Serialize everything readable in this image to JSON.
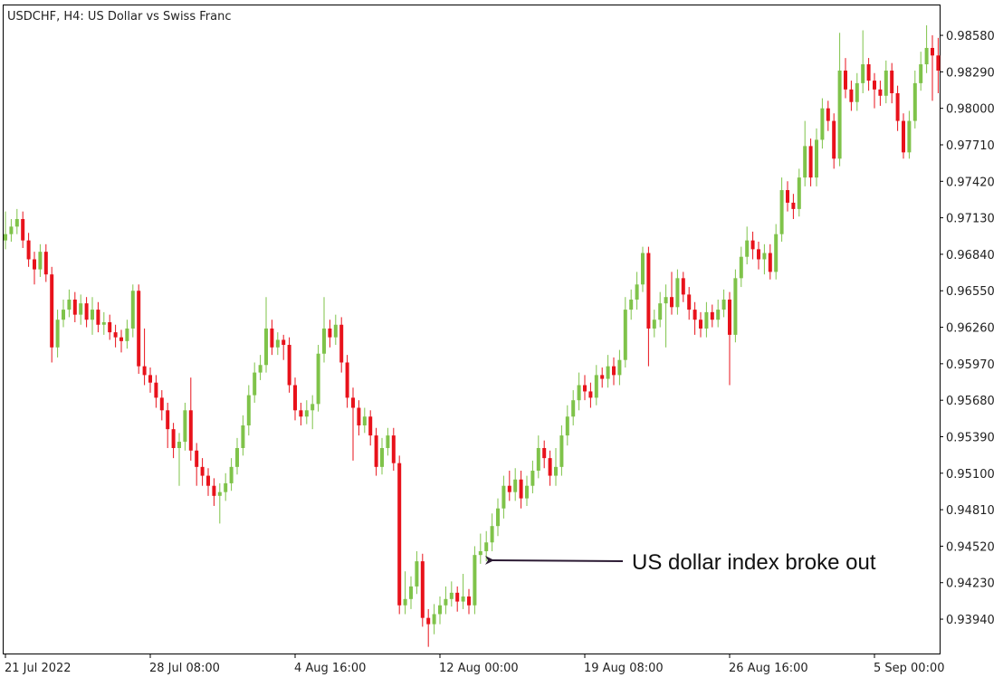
{
  "chart_data": {
    "type": "candlestick",
    "title": "USDCHF, H4:  US Dollar vs Swiss Franc",
    "up_color": "#7fc34a",
    "down_color": "#e8121b",
    "ylim": [
      0.93667,
      0.98825
    ],
    "yticks": [
      {
        "value": 0.9858,
        "label": "0.98580"
      },
      {
        "value": 0.9829,
        "label": "0.98290"
      },
      {
        "value": 0.98,
        "label": "0.98000"
      },
      {
        "value": 0.9771,
        "label": "0.97710"
      },
      {
        "value": 0.9742,
        "label": "0.97420"
      },
      {
        "value": 0.9713,
        "label": "0.97130"
      },
      {
        "value": 0.9684,
        "label": "0.96840"
      },
      {
        "value": 0.9655,
        "label": "0.96550"
      },
      {
        "value": 0.9626,
        "label": "0.96260"
      },
      {
        "value": 0.9597,
        "label": "0.95970"
      },
      {
        "value": 0.9568,
        "label": "0.95680"
      },
      {
        "value": 0.9539,
        "label": "0.95390"
      },
      {
        "value": 0.951,
        "label": "0.95100"
      },
      {
        "value": 0.9481,
        "label": "0.94810"
      },
      {
        "value": 0.9452,
        "label": "0.94520"
      },
      {
        "value": 0.9423,
        "label": "0.94230"
      },
      {
        "value": 0.9394,
        "label": "0.93940"
      }
    ],
    "categories": [
      "21 Jul 2022",
      null,
      null,
      null,
      null,
      null,
      null,
      null,
      null,
      null,
      null,
      null,
      null,
      null,
      null,
      null,
      null,
      null,
      null,
      null,
      null,
      null,
      null,
      null,
      null,
      "28 Jul 08:00",
      null,
      null,
      null,
      null,
      null,
      null,
      null,
      null,
      null,
      null,
      null,
      null,
      null,
      null,
      null,
      null,
      null,
      null,
      null,
      null,
      null,
      null,
      null,
      null,
      "4 Aug 16:00",
      null,
      null,
      null,
      null,
      null,
      null,
      null,
      null,
      null,
      null,
      null,
      null,
      null,
      null,
      null,
      null,
      null,
      null,
      null,
      null,
      null,
      null,
      null,
      null,
      "12 Aug 00:00",
      null,
      null,
      null,
      null,
      null,
      null,
      null,
      null,
      null,
      null,
      null,
      null,
      null,
      null,
      null,
      null,
      null,
      null,
      null,
      null,
      null,
      null,
      null,
      null,
      "19 Aug 08:00",
      null,
      null,
      null,
      null,
      null,
      null,
      null,
      null,
      null,
      null,
      null,
      null,
      null,
      null,
      null,
      null,
      null,
      null,
      null,
      null,
      null,
      null,
      null,
      null,
      "26 Aug 16:00",
      null,
      null,
      null,
      null,
      null,
      null,
      null,
      null,
      null,
      null,
      null,
      null,
      null,
      null,
      null,
      null,
      null,
      null,
      null,
      null,
      null,
      null,
      null,
      null,
      "5 Sep 00:00",
      null,
      null,
      null,
      null,
      null,
      null,
      null,
      null,
      null,
      null,
      null
    ],
    "open": [
      0.9695,
      0.97,
      0.9706,
      0.9712,
      0.9695,
      0.968,
      0.9672,
      0.9686,
      0.9668,
      0.961,
      0.9632,
      0.964,
      0.9648,
      0.9636,
      0.9645,
      0.9632,
      0.964,
      0.9628,
      0.963,
      0.9622,
      0.9618,
      0.9615,
      0.9625,
      0.9655,
      0.9595,
      0.9588,
      0.9582,
      0.957,
      0.956,
      0.9545,
      0.953,
      0.9535,
      0.956,
      0.9528,
      0.9515,
      0.9508,
      0.95,
      0.9492,
      0.9495,
      0.9502,
      0.9515,
      0.953,
      0.9548,
      0.9572,
      0.959,
      0.9596,
      0.9625,
      0.961,
      0.9616,
      0.9612,
      0.958,
      0.956,
      0.9555,
      0.956,
      0.9565,
      0.9605,
      0.9625,
      0.9618,
      0.9628,
      0.9598,
      0.957,
      0.9562,
      0.9548,
      0.9555,
      0.954,
      0.9515,
      0.953,
      0.954,
      0.9518,
      0.9405,
      0.941,
      0.942,
      0.944,
      0.9395,
      0.939,
      0.9398,
      0.9405,
      0.941,
      0.9415,
      0.9408,
      0.9412,
      0.9405,
      0.9445,
      0.9448,
      0.9455,
      0.9468,
      0.9482,
      0.95,
      0.9495,
      0.9505,
      0.949,
      0.95,
      0.9512,
      0.953,
      0.9522,
      0.9508,
      0.9515,
      0.954,
      0.9555,
      0.9568,
      0.958,
      0.9575,
      0.957,
      0.9588,
      0.9585,
      0.9595,
      0.9588,
      0.96,
      0.964,
      0.9648,
      0.966,
      0.9685,
      0.9625,
      0.9632,
      0.9645,
      0.965,
      0.9642,
      0.9665,
      0.9652,
      0.964,
      0.9632,
      0.9625,
      0.9638,
      0.9632,
      0.964,
      0.9648,
      0.962,
      0.9665,
      0.9682,
      0.9695,
      0.9688,
      0.968,
      0.9685,
      0.967,
      0.97,
      0.9735,
      0.9725,
      0.972,
      0.9745,
      0.977,
      0.9745,
      0.9775,
      0.98,
      0.979,
      0.976,
      0.983,
      0.9815,
      0.9805,
      0.982,
      0.9835,
      0.9822,
      0.9815,
      0.981,
      0.983,
      0.9812,
      0.979,
      0.9765,
      0.979,
      0.982,
      0.9835,
      0.9848,
      0.9842
    ],
    "high": [
      0.9718,
      0.9712,
      0.972,
      0.9718,
      0.9701,
      0.9686,
      0.9692,
      0.9692,
      0.9674,
      0.964,
      0.9648,
      0.9656,
      0.9654,
      0.9652,
      0.965,
      0.965,
      0.9646,
      0.9638,
      0.9636,
      0.9628,
      0.9624,
      0.9632,
      0.966,
      0.966,
      0.9625,
      0.9594,
      0.9588,
      0.9576,
      0.9566,
      0.955,
      0.9542,
      0.9566,
      0.9586,
      0.9534,
      0.9522,
      0.9514,
      0.9506,
      0.9502,
      0.951,
      0.9522,
      0.9538,
      0.9556,
      0.958,
      0.9598,
      0.9604,
      0.965,
      0.9632,
      0.9622,
      0.962,
      0.9618,
      0.9586,
      0.9566,
      0.9568,
      0.9572,
      0.9612,
      0.965,
      0.9632,
      0.9636,
      0.9634,
      0.9604,
      0.9578,
      0.9568,
      0.9562,
      0.956,
      0.9546,
      0.9538,
      0.9546,
      0.9546,
      0.9524,
      0.9432,
      0.9428,
      0.9448,
      0.9446,
      0.9402,
      0.9406,
      0.9412,
      0.942,
      0.9424,
      0.942,
      0.943,
      0.9418,
      0.9452,
      0.9462,
      0.9464,
      0.9478,
      0.949,
      0.9508,
      0.9512,
      0.9514,
      0.9512,
      0.9508,
      0.952,
      0.954,
      0.9536,
      0.9528,
      0.953,
      0.9548,
      0.9564,
      0.9576,
      0.959,
      0.9588,
      0.9582,
      0.9596,
      0.9594,
      0.9604,
      0.9602,
      0.9608,
      0.965,
      0.9656,
      0.967,
      0.969,
      0.969,
      0.964,
      0.9654,
      0.966,
      0.967,
      0.9672,
      0.967,
      0.9658,
      0.9646,
      0.9638,
      0.9646,
      0.9644,
      0.9648,
      0.9656,
      0.9654,
      0.9672,
      0.969,
      0.9706,
      0.9702,
      0.9694,
      0.9692,
      0.9692,
      0.9708,
      0.9745,
      0.9742,
      0.9732,
      0.9752,
      0.979,
      0.9776,
      0.9784,
      0.9808,
      0.9806,
      0.9796,
      0.986,
      0.984,
      0.9822,
      0.9828,
      0.9862,
      0.984,
      0.9828,
      0.9822,
      0.9838,
      0.9836,
      0.9818,
      0.9796,
      0.9798,
      0.983,
      0.9845,
      0.9866,
      0.9858,
      0.9856
    ],
    "low": [
      0.9688,
      0.9694,
      0.97,
      0.9689,
      0.9674,
      0.966,
      0.9666,
      0.9662,
      0.9598,
      0.9602,
      0.9626,
      0.9634,
      0.963,
      0.9628,
      0.9626,
      0.962,
      0.9622,
      0.962,
      0.9616,
      0.961,
      0.9606,
      0.9609,
      0.9618,
      0.9589,
      0.958,
      0.9574,
      0.9562,
      0.9552,
      0.953,
      0.9522,
      0.95,
      0.9528,
      0.952,
      0.95,
      0.95,
      0.9492,
      0.9484,
      0.947,
      0.9488,
      0.9496,
      0.9509,
      0.9524,
      0.954,
      0.9566,
      0.9584,
      0.959,
      0.9604,
      0.9604,
      0.96,
      0.9574,
      0.9552,
      0.9548,
      0.9549,
      0.9545,
      0.9559,
      0.9598,
      0.961,
      0.9612,
      0.959,
      0.9562,
      0.952,
      0.954,
      0.9542,
      0.9532,
      0.9508,
      0.9509,
      0.9524,
      0.9512,
      0.9398,
      0.9398,
      0.9402,
      0.9414,
      0.9388,
      0.9372,
      0.9382,
      0.939,
      0.9398,
      0.9404,
      0.94,
      0.9402,
      0.9398,
      0.9398,
      0.9438,
      0.944,
      0.9448,
      0.946,
      0.9474,
      0.9488,
      0.9488,
      0.9482,
      0.9484,
      0.9494,
      0.9506,
      0.9514,
      0.95,
      0.95,
      0.9508,
      0.9532,
      0.9548,
      0.956,
      0.9568,
      0.9562,
      0.9564,
      0.9578,
      0.9578,
      0.958,
      0.958,
      0.9594,
      0.9632,
      0.964,
      0.9654,
      0.9595,
      0.9618,
      0.9626,
      0.961,
      0.9636,
      0.9636,
      0.9646,
      0.9632,
      0.962,
      0.9618,
      0.9618,
      0.9626,
      0.9626,
      0.9634,
      0.958,
      0.9614,
      0.9658,
      0.9676,
      0.968,
      0.9672,
      0.9668,
      0.9664,
      0.9664,
      0.9694,
      0.9718,
      0.9712,
      0.9714,
      0.9738,
      0.9738,
      0.9738,
      0.9768,
      0.9782,
      0.9752,
      0.9754,
      0.9808,
      0.9798,
      0.9798,
      0.9812,
      0.9814,
      0.98,
      0.9802,
      0.9804,
      0.9804,
      0.9782,
      0.976,
      0.976,
      0.9784,
      0.9814,
      0.9828,
      0.9806,
      0.9812
    ],
    "close": [
      0.97,
      0.9706,
      0.9712,
      0.9695,
      0.968,
      0.9672,
      0.9686,
      0.9668,
      0.961,
      0.9632,
      0.964,
      0.9648,
      0.9636,
      0.9645,
      0.9632,
      0.964,
      0.9628,
      0.963,
      0.9622,
      0.9618,
      0.9615,
      0.9625,
      0.9655,
      0.9595,
      0.9588,
      0.9582,
      0.957,
      0.956,
      0.9545,
      0.953,
      0.9535,
      0.956,
      0.9528,
      0.9515,
      0.9508,
      0.95,
      0.9492,
      0.9495,
      0.9502,
      0.9515,
      0.953,
      0.9548,
      0.9572,
      0.959,
      0.9596,
      0.9625,
      0.961,
      0.9616,
      0.9612,
      0.958,
      0.956,
      0.9555,
      0.956,
      0.9565,
      0.9605,
      0.9625,
      0.9618,
      0.9628,
      0.9598,
      0.957,
      0.9562,
      0.9548,
      0.9555,
      0.954,
      0.9515,
      0.953,
      0.954,
      0.9518,
      0.9405,
      0.941,
      0.942,
      0.944,
      0.9395,
      0.939,
      0.9398,
      0.9405,
      0.941,
      0.9415,
      0.9408,
      0.9412,
      0.9405,
      0.9445,
      0.9448,
      0.9455,
      0.9468,
      0.9482,
      0.95,
      0.9495,
      0.9505,
      0.949,
      0.95,
      0.9512,
      0.953,
      0.9522,
      0.9508,
      0.9515,
      0.954,
      0.9555,
      0.9568,
      0.958,
      0.9575,
      0.957,
      0.9588,
      0.9585,
      0.9595,
      0.9588,
      0.96,
      0.964,
      0.9648,
      0.966,
      0.9685,
      0.9625,
      0.9632,
      0.9645,
      0.965,
      0.9642,
      0.9665,
      0.9652,
      0.964,
      0.9632,
      0.9625,
      0.9638,
      0.9632,
      0.964,
      0.9648,
      0.962,
      0.9665,
      0.9682,
      0.9695,
      0.9688,
      0.968,
      0.9685,
      0.967,
      0.97,
      0.9735,
      0.9725,
      0.972,
      0.9745,
      0.977,
      0.9745,
      0.9775,
      0.98,
      0.979,
      0.976,
      0.983,
      0.9815,
      0.9805,
      0.982,
      0.9835,
      0.9822,
      0.9815,
      0.981,
      0.983,
      0.9812,
      0.979,
      0.9765,
      0.979,
      0.982,
      0.9835,
      0.9848,
      0.9842,
      0.983
    ],
    "annotations": [
      {
        "text": "US dollar index broke out"
      }
    ]
  }
}
